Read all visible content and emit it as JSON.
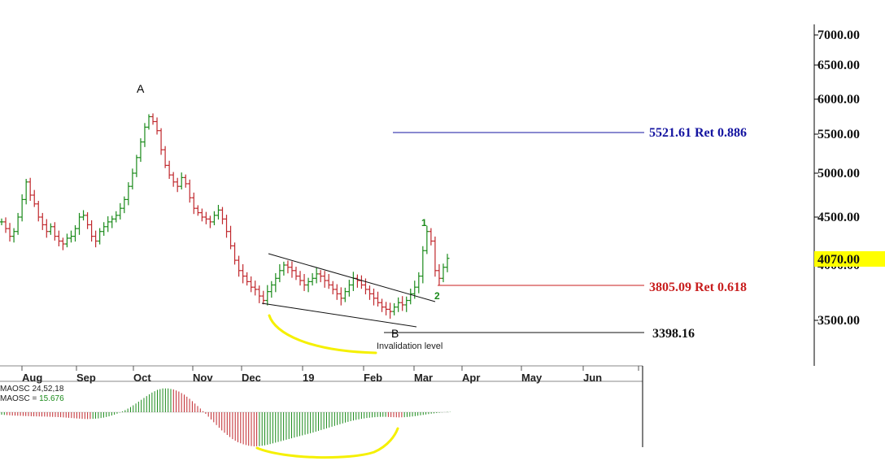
{
  "chart_data": {
    "type": "ohlc",
    "price_axis": {
      "ticks": [
        {
          "value": 7000,
          "label": "7000.00"
        },
        {
          "value": 6500,
          "label": "6500.00"
        },
        {
          "value": 6000,
          "label": "6000.00"
        },
        {
          "value": 5500,
          "label": "5500.00"
        },
        {
          "value": 5000,
          "label": "5000.00"
        },
        {
          "value": 4500,
          "label": "4500.00"
        },
        {
          "value": 4000,
          "label": "4000.00"
        },
        {
          "value": 3500,
          "label": "3500.00"
        }
      ],
      "current_price": {
        "value": 4070,
        "label": "4070.00",
        "color": "#ffff00"
      }
    },
    "months": [
      "Aug",
      "Sep",
      "Oct",
      "Nov",
      "Dec",
      "19",
      "Feb",
      "Mar",
      "Apr",
      "May",
      "Jun"
    ],
    "price_series_closes": [
      4450,
      4380,
      4300,
      4350,
      4500,
      4700,
      4900,
      4750,
      4650,
      4500,
      4420,
      4350,
      4400,
      4300,
      4250,
      4220,
      4280,
      4300,
      4380,
      4500,
      4520,
      4420,
      4300,
      4250,
      4350,
      4400,
      4450,
      4480,
      4520,
      4600,
      4700,
      4850,
      5000,
      5200,
      5400,
      5600,
      5750,
      5680,
      5550,
      5300,
      5100,
      4980,
      4900,
      4850,
      4950,
      4880,
      4720,
      4600,
      4550,
      4500,
      4480,
      4450,
      4520,
      4580,
      4480,
      4350,
      4200,
      4050,
      3950,
      3900,
      3850,
      3800,
      3780,
      3720,
      3680,
      3760,
      3820,
      3880,
      3950,
      4000,
      3980,
      3950,
      3900,
      3860,
      3820,
      3850,
      3880,
      3920,
      3900,
      3860,
      3820,
      3780,
      3740,
      3700,
      3760,
      3820,
      3880,
      3860,
      3820,
      3780,
      3740,
      3700,
      3660,
      3620,
      3600,
      3580,
      3620,
      3660,
      3640,
      3680,
      3740,
      3800,
      3900,
      4150,
      4350,
      4250,
      3950,
      3880,
      3980,
      4070
    ],
    "oscillator": {
      "name": "MAOSC 24,52,18",
      "value_label": "MAOSC = 15.676",
      "values": [
        -120,
        -140,
        -160,
        -170,
        -180,
        -190,
        -200,
        -205,
        -210,
        -220,
        -230,
        -240,
        -260,
        -280,
        -300,
        -320,
        -330,
        -320,
        -300,
        -260,
        -200,
        -120,
        -20,
        100,
        250,
        420,
        600,
        780,
        950,
        1080,
        1150,
        1150,
        1100,
        1000,
        850,
        650,
        420,
        180,
        -80,
        -350,
        -620,
        -880,
        -1100,
        -1300,
        -1450,
        -1550,
        -1620,
        -1650,
        -1640,
        -1600,
        -1540,
        -1470,
        -1400,
        -1330,
        -1260,
        -1190,
        -1120,
        -1050,
        -980,
        -900,
        -820,
        -740,
        -660,
        -580,
        -500,
        -430,
        -370,
        -320,
        -280,
        -250,
        -230,
        -220,
        -230,
        -240,
        -250,
        -240,
        -220,
        -190,
        -150,
        -110,
        -70,
        -40,
        -10,
        15
      ]
    },
    "annotations": {
      "waves": [
        {
          "label": "A",
          "price": 5800
        },
        {
          "label": "B",
          "price": 3398.16
        },
        {
          "label": "1",
          "price": 4350
        },
        {
          "label": "2",
          "price": 3805.09
        }
      ],
      "levels": [
        {
          "price": 5521.61,
          "label": "5521.61 Ret 0.886",
          "color": "#1414a0"
        },
        {
          "price": 3805.09,
          "label": "3805.09 Ret 0.618",
          "color": "#c81e1e"
        },
        {
          "price": 3398.16,
          "label": "3398.16",
          "color": "#000000"
        }
      ],
      "invalidation_text": "Invalidation level"
    },
    "colors": {
      "up": "#1a8a1a",
      "down": "#c0282d",
      "marker": "#f5f000"
    }
  }
}
